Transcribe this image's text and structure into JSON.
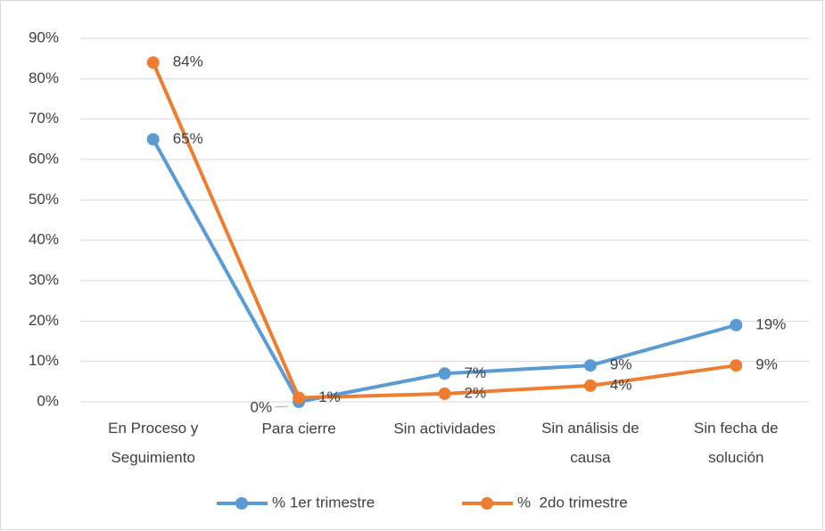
{
  "chart_data": {
    "type": "line",
    "categories": [
      "En Proceso y Seguimiento",
      "Para cierre",
      "Sin actividades",
      "Sin análisis de causa",
      "Sin fecha de solución"
    ],
    "series": [
      {
        "name": "% 1er trimestre",
        "color": "#5b9bd5",
        "values": [
          65,
          0,
          7,
          9,
          19
        ],
        "value_labels": [
          "65%",
          "0%",
          "7%",
          "9%",
          "19%"
        ]
      },
      {
        "name": "%  2do trimestre",
        "color": "#ed7d31",
        "values": [
          84,
          1,
          2,
          4,
          9
        ],
        "value_labels": [
          "84%",
          "1%",
          "2%",
          "4%",
          "9%"
        ]
      }
    ],
    "ylim": [
      0,
      90
    ],
    "yticks": [
      {
        "value": 0,
        "label": "0%"
      },
      {
        "value": 10,
        "label": "10%"
      },
      {
        "value": 20,
        "label": "20%"
      },
      {
        "value": 30,
        "label": "30%"
      },
      {
        "value": 40,
        "label": "40%"
      },
      {
        "value": 50,
        "label": "50%"
      },
      {
        "value": 60,
        "label": "60%"
      },
      {
        "value": 70,
        "label": "70%"
      },
      {
        "value": 80,
        "label": "80%"
      },
      {
        "value": 90,
        "label": "90%"
      }
    ],
    "grid": true,
    "legend": "bottom"
  }
}
